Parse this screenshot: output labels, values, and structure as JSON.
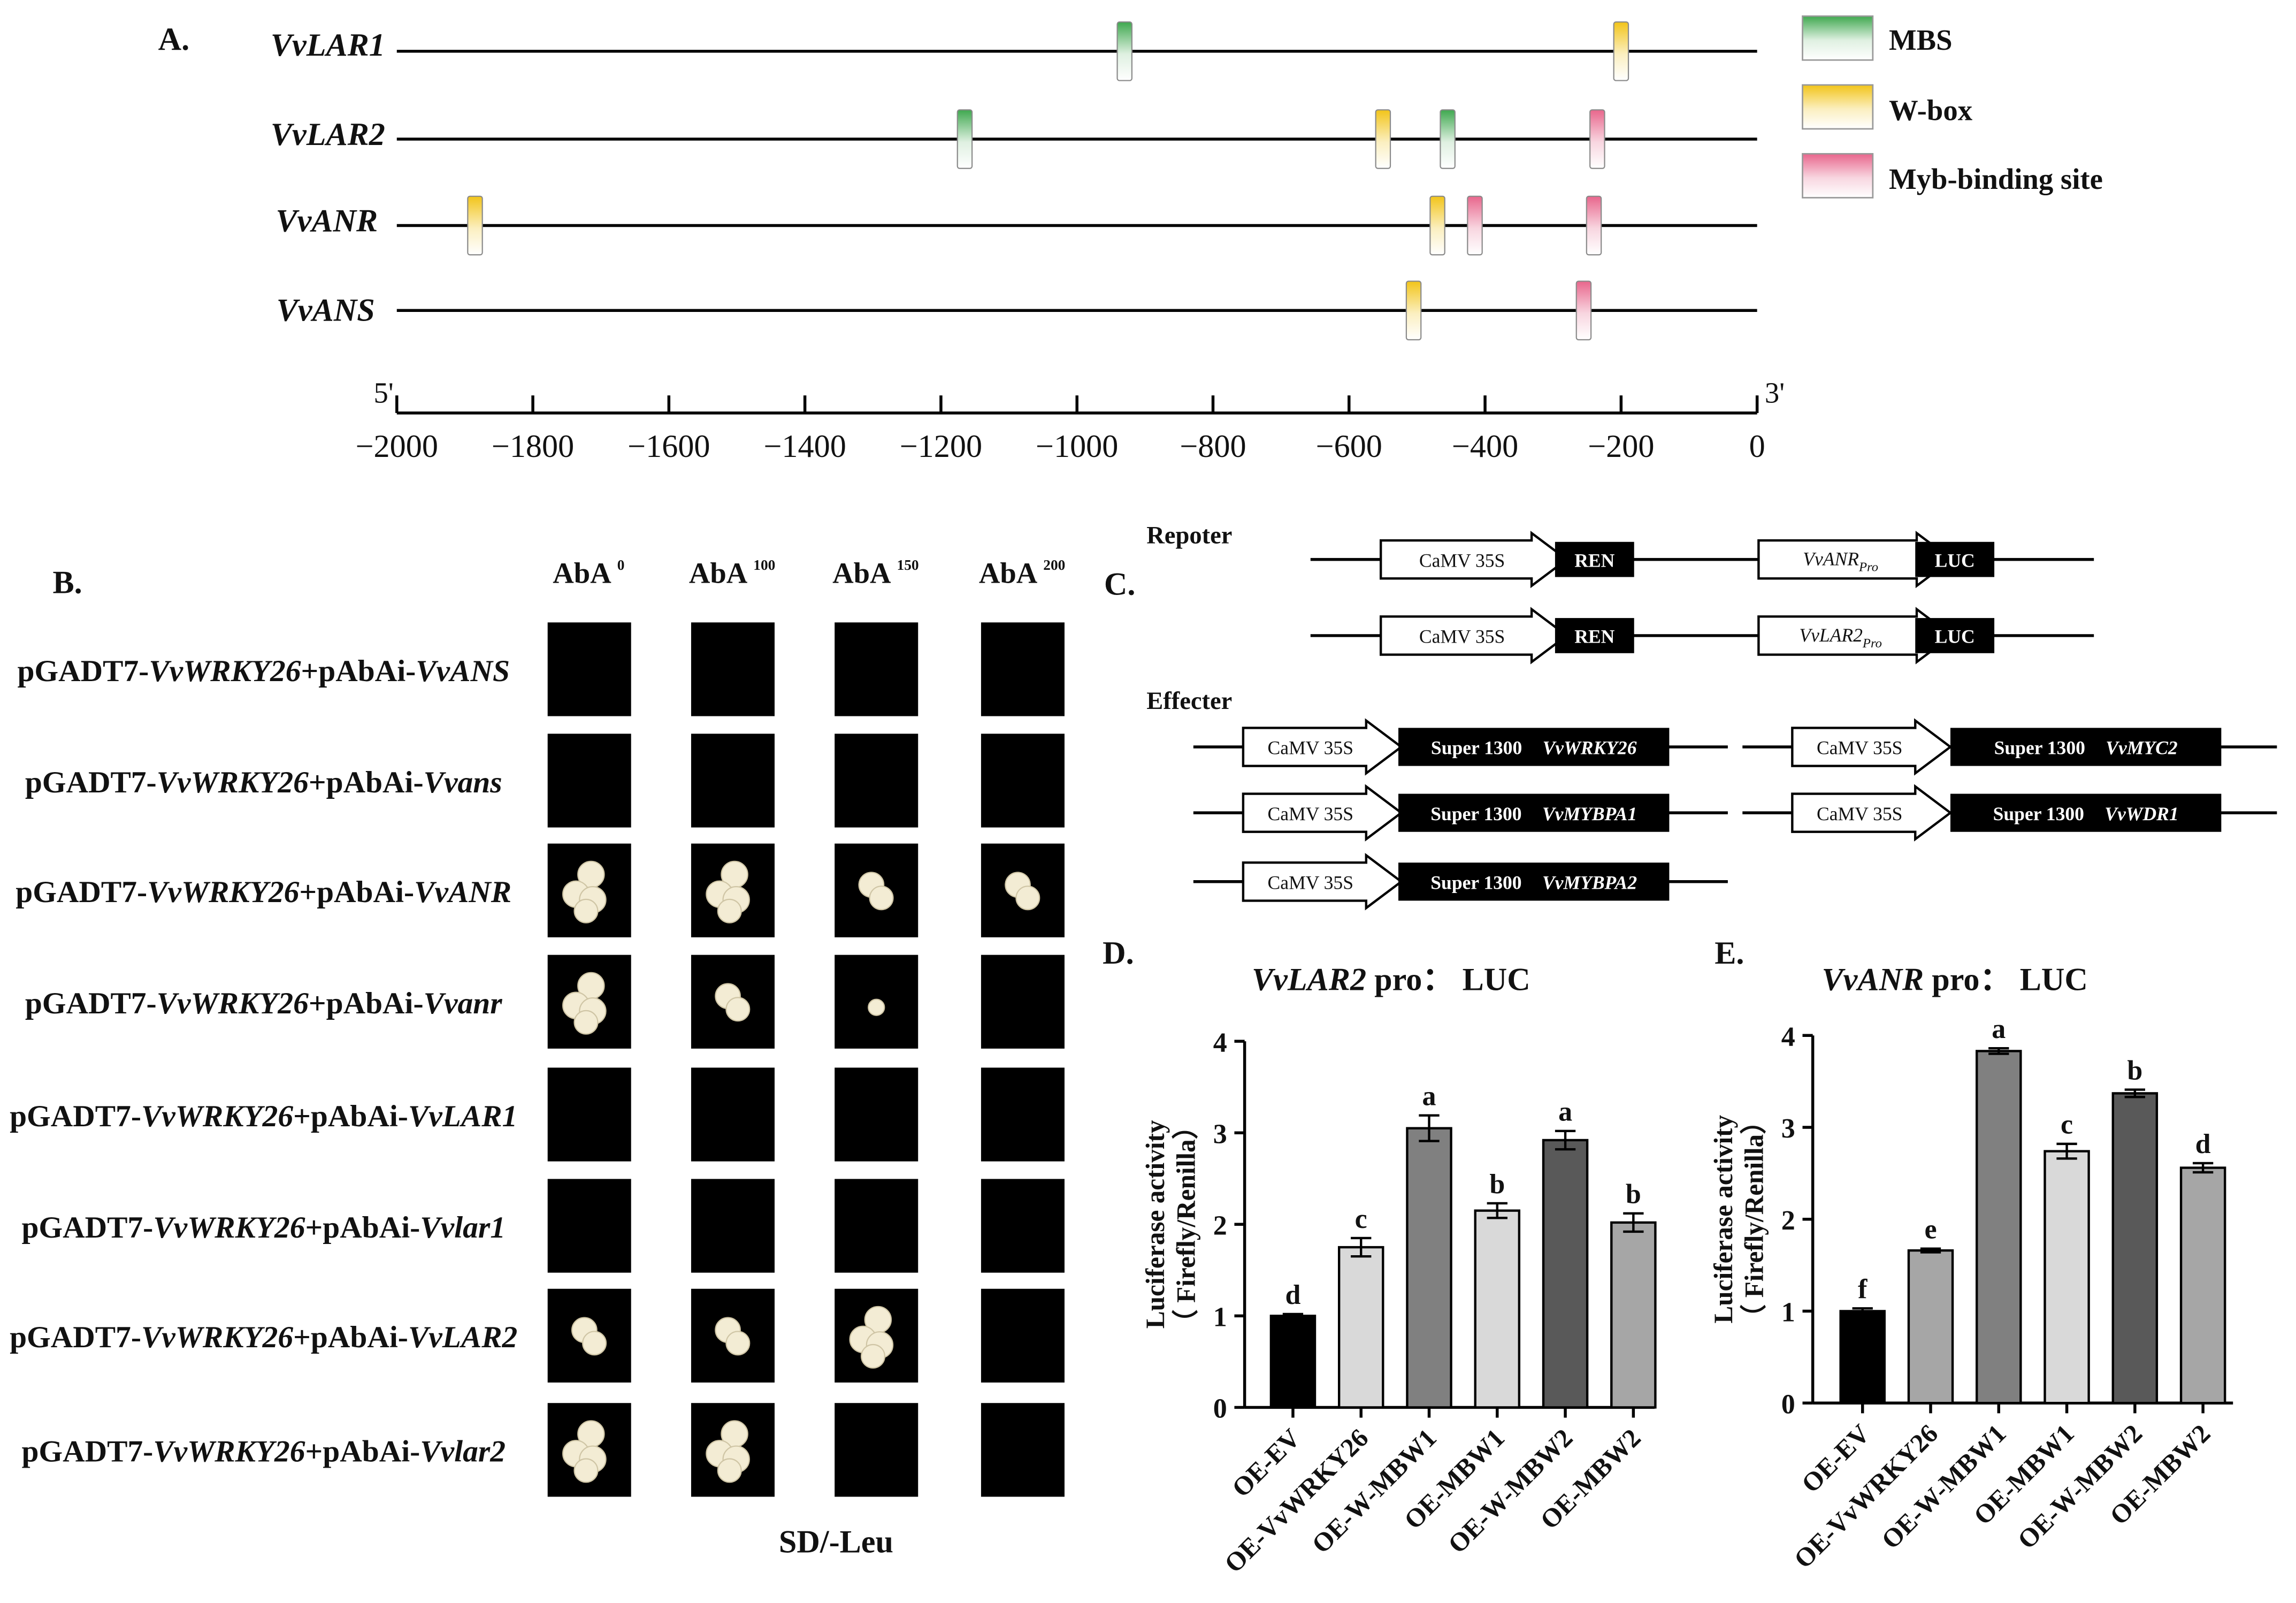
{
  "colors": {
    "mbs": "#3fa84f",
    "wbox": "#f2c419",
    "myb": "#e8668c",
    "cell": "#f3ecd4",
    "dark_box": "#000000"
  },
  "panelA": {
    "label": "A.",
    "genes": [
      {
        "name": "VvLAR1",
        "sites": [
          {
            "type": "MBS",
            "pos": -930
          },
          {
            "type": "W-box",
            "pos": -200
          }
        ]
      },
      {
        "name": "VvLAR2",
        "sites": [
          {
            "type": "MBS",
            "pos": -1165
          },
          {
            "type": "W-box",
            "pos": -550
          },
          {
            "type": "MBS",
            "pos": -455
          },
          {
            "type": "Myb-binding site",
            "pos": -235
          }
        ]
      },
      {
        "name": "VvANR",
        "sites": [
          {
            "type": "W-box",
            "pos": -1885
          },
          {
            "type": "W-box",
            "pos": -470
          },
          {
            "type": "Myb-binding site",
            "pos": -415
          },
          {
            "type": "Myb-binding site",
            "pos": -240
          }
        ]
      },
      {
        "name": "VvANS",
        "sites": [
          {
            "type": "W-box",
            "pos": -505
          },
          {
            "type": "Myb-binding site",
            "pos": -255
          }
        ]
      }
    ],
    "legend": [
      "MBS",
      "W-box",
      "Myb-binding site"
    ],
    "axis": {
      "min": -2000,
      "max": 0,
      "ticks": [
        "−2000",
        "−1800",
        "−1600",
        "−1400",
        "−1200",
        "−1000",
        "−800",
        "−600",
        "−400",
        "−200",
        "0"
      ],
      "left_end": "5'",
      "right_end": "3'"
    }
  },
  "panelB": {
    "label": "B.",
    "col_base": "AbA",
    "cols": [
      {
        "sup": "0"
      },
      {
        "sup": "100"
      },
      {
        "sup": "150"
      },
      {
        "sup": "200"
      }
    ],
    "row_prefix": "pGADT7-",
    "row_tf": "VvWRKY26",
    "row_mid": "+pAbAi-",
    "rows": [
      {
        "target": "VvANS",
        "growth": [
          0,
          0,
          0,
          0
        ]
      },
      {
        "target": "Vvans",
        "growth": [
          0,
          0,
          0,
          0
        ]
      },
      {
        "target": "VvANR",
        "growth": [
          3,
          3,
          2,
          2
        ]
      },
      {
        "target": "Vvanr",
        "growth": [
          3,
          2,
          1,
          0
        ]
      },
      {
        "target": "VvLAR1",
        "growth": [
          0,
          0,
          0,
          0
        ]
      },
      {
        "target": "Vvlar1",
        "growth": [
          0,
          0,
          0,
          0
        ]
      },
      {
        "target": "VvLAR2",
        "growth": [
          2,
          2,
          3,
          0
        ]
      },
      {
        "target": "Vvlar2",
        "growth": [
          3,
          3,
          0,
          0
        ]
      }
    ],
    "footer": "SD/-Leu"
  },
  "panelC": {
    "label": "C.",
    "reporter_title": "Repoter",
    "effector_title": "Effecter",
    "reporters": [
      {
        "promoter": "CaMV 35S",
        "ren": "REN",
        "pro_gene": "VvANR",
        "pro_sub": "Pro",
        "luc": "LUC"
      },
      {
        "promoter": "CaMV 35S",
        "ren": "REN",
        "pro_gene": "VvLAR2",
        "pro_sub": "Pro",
        "luc": "LUC"
      }
    ],
    "effectors": [
      {
        "promoter": "CaMV 35S",
        "vector": "Super 1300",
        "gene": "VvWRKY26"
      },
      {
        "promoter": "CaMV 35S",
        "vector": "Super 1300",
        "gene": "VvMYC2"
      },
      {
        "promoter": "CaMV 35S",
        "vector": "Super 1300",
        "gene": "VvMYBPA1"
      },
      {
        "promoter": "CaMV 35S",
        "vector": "Super 1300",
        "gene": "VvWDR1"
      },
      {
        "promoter": "CaMV 35S",
        "vector": "Super 1300",
        "gene": "VvMYBPA2"
      }
    ]
  },
  "chart_data": [
    {
      "type": "bar",
      "label": "D.",
      "title_gene": "VvLAR2",
      "title_rest": " pro： LUC",
      "ylabel_line1": "Luciferase activity",
      "ylabel_line2": "（ Firefly/Renilla）",
      "ylim": [
        0,
        4
      ],
      "yticks": [
        "0",
        "1",
        "2",
        "3",
        "4"
      ],
      "categories": [
        "OE-EV",
        "OE-VvWRKY26",
        "OE-W-MBW1",
        "OE-MBW1",
        "OE-W-MBW2",
        "OE-MBW2"
      ],
      "values": [
        1.0,
        1.75,
        3.05,
        2.15,
        2.92,
        2.02
      ],
      "errors": [
        0.02,
        0.1,
        0.14,
        0.08,
        0.1,
        0.1
      ],
      "letters": [
        "d",
        "c",
        "a",
        "b",
        "a",
        "b"
      ],
      "colors": [
        "#000000",
        "#d9d9d9",
        "#808080",
        "#d9d9d9",
        "#595959",
        "#a6a6a6"
      ]
    },
    {
      "type": "bar",
      "label": "E.",
      "title_gene": "VvANR",
      "title_rest": " pro： LUC",
      "ylabel_line1": "Luciferase activity",
      "ylabel_line2": "（ Firefly/Renilla）",
      "ylim": [
        0,
        4
      ],
      "yticks": [
        "0",
        "1",
        "2",
        "3",
        "4"
      ],
      "categories": [
        "OE-EV",
        "OE-VvWRKY26",
        "OE-W-MBW1",
        "OE-MBW1",
        "OE-W-MBW2",
        "OE-MBW2"
      ],
      "values": [
        1.0,
        1.66,
        3.83,
        2.74,
        3.37,
        2.56
      ],
      "errors": [
        0.03,
        0.02,
        0.03,
        0.08,
        0.04,
        0.05
      ],
      "letters": [
        "f",
        "e",
        "a",
        "c",
        "b",
        "d"
      ],
      "colors": [
        "#000000",
        "#a6a6a6",
        "#808080",
        "#d9d9d9",
        "#595959",
        "#a6a6a6"
      ]
    }
  ]
}
